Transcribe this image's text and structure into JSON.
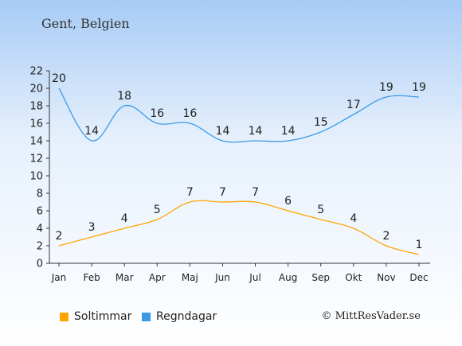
{
  "header": {
    "title": "Gent, Belgien"
  },
  "legend": {
    "sun_label": "Soltimmar",
    "rain_label": "Regndagar"
  },
  "credit": "© MittResVader.se",
  "colors": {
    "sun": "#ffa500",
    "rain": "#3a9ae8"
  },
  "chart_data": {
    "type": "line",
    "categories": [
      "Jan",
      "Feb",
      "Mar",
      "Apr",
      "Maj",
      "Jun",
      "Jul",
      "Aug",
      "Sep",
      "Okt",
      "Nov",
      "Dec"
    ],
    "series": [
      {
        "name": "Soltimmar",
        "values": [
          2,
          3,
          4,
          5,
          7,
          7,
          7,
          6,
          5,
          4,
          2,
          1
        ]
      },
      {
        "name": "Regndagar",
        "values": [
          20,
          14,
          18,
          16,
          16,
          14,
          14,
          14,
          15,
          17,
          19,
          19
        ]
      }
    ],
    "ylim": [
      0,
      22
    ],
    "yticks": [
      0,
      2,
      4,
      6,
      8,
      10,
      12,
      14,
      16,
      18,
      20,
      22
    ],
    "grid": false,
    "legend_position": "bottom"
  }
}
